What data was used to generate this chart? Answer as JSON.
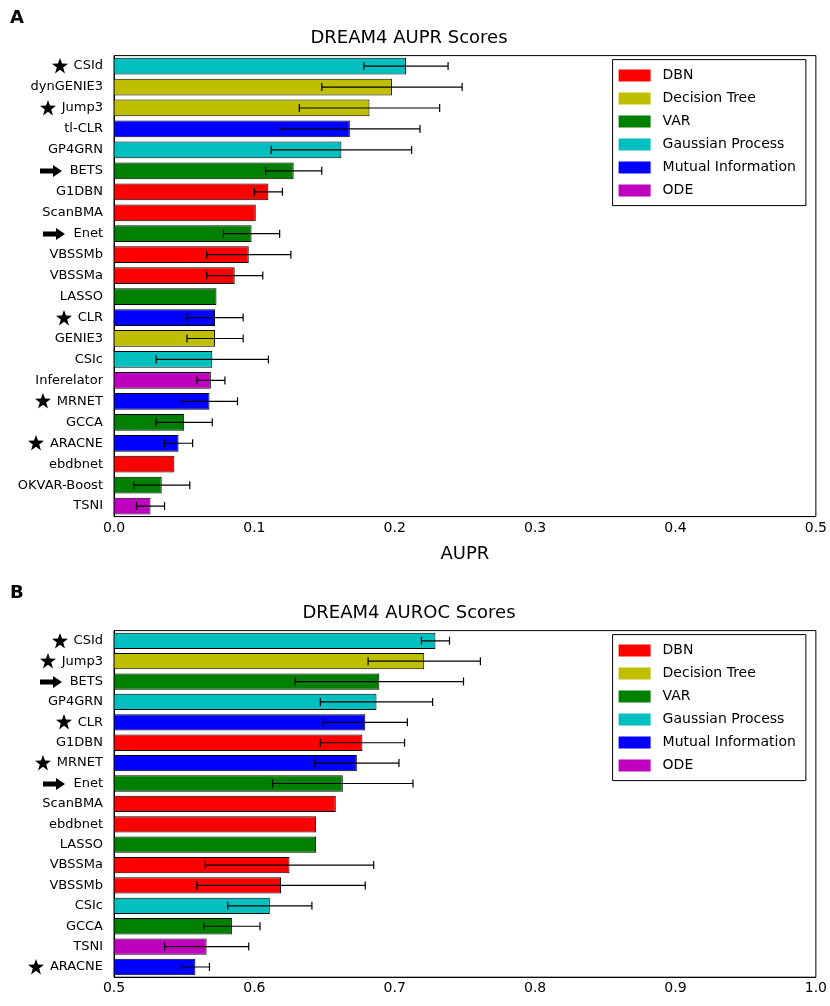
{
  "chart_data": [
    {
      "type": "bar",
      "orientation": "horizontal",
      "title": "DREAM4 AUPR Scores",
      "xlabel": "AUPR",
      "annotations": [
        "A"
      ],
      "categories": [
        "CSId",
        "dynGENIE3",
        "Jump3",
        "tl-CLR",
        "GP4GRN",
        "BETS",
        "G1DBN",
        "ScanBMA",
        "Enet",
        "VBSSMb",
        "VBSSMa",
        "LASSO",
        "CLR",
        "GENIE3",
        "CSIc",
        "Inferelator",
        "MRNET",
        "GCCA",
        "ARACNE",
        "ebdbnet",
        "OKVAR-Boost",
        "TSNI"
      ],
      "series": [
        {
          "name": "DBN",
          "color": "#ff0000",
          "values": [
            null,
            null,
            null,
            null,
            null,
            null,
            0.11,
            0.101,
            null,
            0.096,
            0.086,
            null,
            null,
            null,
            null,
            null,
            null,
            null,
            null,
            0.043,
            null,
            null
          ],
          "errors": [
            null,
            null,
            null,
            null,
            null,
            null,
            0.01,
            null,
            null,
            0.03,
            0.02,
            null,
            null,
            null,
            null,
            null,
            null,
            null,
            null,
            null,
            null,
            null
          ]
        },
        {
          "name": "Decision Tree",
          "color": "#bfbf00",
          "values": [
            null,
            0.198,
            0.182,
            null,
            null,
            null,
            null,
            null,
            null,
            null,
            null,
            null,
            null,
            0.072,
            null,
            null,
            null,
            null,
            null,
            null,
            null,
            null
          ],
          "errors": [
            null,
            0.05,
            0.05,
            null,
            null,
            null,
            null,
            null,
            null,
            null,
            null,
            null,
            null,
            0.02,
            null,
            null,
            null,
            null,
            null,
            null,
            null,
            null
          ]
        },
        {
          "name": "VAR",
          "color": "#008000",
          "values": [
            null,
            null,
            null,
            null,
            null,
            0.128,
            null,
            null,
            0.098,
            null,
            null,
            0.073,
            null,
            null,
            null,
            null,
            null,
            0.05,
            null,
            null,
            0.034,
            null
          ],
          "errors": [
            null,
            null,
            null,
            null,
            null,
            0.02,
            null,
            null,
            0.02,
            null,
            null,
            null,
            null,
            null,
            null,
            null,
            null,
            0.02,
            null,
            null,
            0.02,
            null
          ]
        },
        {
          "name": "Gaussian Process",
          "color": "#00bfbf",
          "values": [
            0.208,
            null,
            null,
            null,
            0.162,
            null,
            null,
            null,
            null,
            null,
            null,
            null,
            null,
            null,
            0.07,
            null,
            null,
            null,
            null,
            null,
            null,
            null
          ],
          "errors": [
            0.03,
            null,
            null,
            null,
            0.05,
            null,
            null,
            null,
            null,
            null,
            null,
            null,
            null,
            null,
            0.04,
            null,
            null,
            null,
            null,
            null,
            null,
            null
          ]
        },
        {
          "name": "Mutual Information",
          "color": "#0000ff",
          "values": [
            null,
            null,
            null,
            0.168,
            null,
            null,
            null,
            null,
            null,
            null,
            null,
            null,
            0.072,
            null,
            null,
            null,
            0.068,
            null,
            0.046,
            null,
            null,
            null
          ],
          "errors": [
            null,
            null,
            null,
            0.05,
            null,
            null,
            null,
            null,
            null,
            null,
            null,
            null,
            0.02,
            null,
            null,
            null,
            0.02,
            null,
            0.01,
            null,
            null,
            null
          ]
        },
        {
          "name": "ODE",
          "color": "#bf00bf",
          "values": [
            null,
            null,
            null,
            null,
            null,
            null,
            null,
            null,
            null,
            null,
            null,
            null,
            null,
            null,
            null,
            0.069,
            null,
            null,
            null,
            null,
            null,
            0.026
          ],
          "errors": [
            null,
            null,
            null,
            null,
            null,
            null,
            null,
            null,
            null,
            null,
            null,
            null,
            null,
            null,
            null,
            0.01,
            null,
            null,
            null,
            null,
            null,
            0.01
          ]
        }
      ],
      "xlim": [
        0,
        0.5
      ],
      "xticks": [
        {
          "value": 0,
          "label": "0.0"
        },
        0.1,
        0.2,
        0.3,
        0.4,
        0.5
      ],
      "legend": "top right"
    },
    {
      "type": "bar",
      "orientation": "horizontal",
      "title": "DREAM4 AUROC Scores",
      "annotations": [
        "B"
      ],
      "categories": [
        "CSId",
        "Jump3",
        "BETS",
        "GP4GRN",
        "CLR",
        "G1DBN",
        "MRNET",
        "Enet",
        "ScanBMA",
        "ebdbnet",
        "LASSO",
        "VBSSMa",
        "VBSSMb",
        "CSIc",
        "GCCA",
        "TSNI",
        "ARACNE"
      ],
      "series": [
        {
          "name": "DBN",
          "color": "#ff0000",
          "values": [
            null,
            null,
            null,
            null,
            null,
            0.677,
            null,
            null,
            0.658,
            0.644,
            null,
            0.625,
            0.619,
            null,
            null,
            null,
            null
          ],
          "errors": [
            null,
            null,
            null,
            null,
            null,
            0.03,
            null,
            null,
            null,
            null,
            null,
            0.06,
            0.06,
            null,
            null,
            null,
            null
          ]
        },
        {
          "name": "Decision Tree",
          "color": "#bfbf00",
          "values": [
            null,
            0.721,
            null,
            null,
            null,
            null,
            null,
            null,
            null,
            null,
            null,
            null,
            null,
            null,
            null,
            null,
            null
          ],
          "errors": [
            null,
            0.04,
            null,
            null,
            null,
            null,
            null,
            null,
            null,
            null,
            null,
            null,
            null,
            null,
            null,
            null,
            null
          ]
        },
        {
          "name": "VAR",
          "color": "#008000",
          "values": [
            null,
            null,
            0.689,
            null,
            null,
            null,
            null,
            0.663,
            null,
            null,
            0.644,
            null,
            null,
            null,
            0.584,
            null,
            null
          ],
          "errors": [
            null,
            null,
            0.06,
            null,
            null,
            null,
            null,
            0.05,
            null,
            null,
            null,
            null,
            null,
            null,
            0.02,
            null,
            null
          ]
        },
        {
          "name": "Gaussian Process",
          "color": "#00bfbf",
          "values": [
            0.729,
            null,
            null,
            0.687,
            null,
            null,
            null,
            null,
            null,
            null,
            null,
            null,
            null,
            0.611,
            null,
            null,
            null
          ],
          "errors": [
            0.01,
            null,
            null,
            0.04,
            null,
            null,
            null,
            null,
            null,
            null,
            null,
            null,
            null,
            0.03,
            null,
            null,
            null
          ]
        },
        {
          "name": "Mutual Information",
          "color": "#0000ff",
          "values": [
            null,
            null,
            null,
            null,
            0.679,
            null,
            0.673,
            null,
            null,
            null,
            null,
            null,
            null,
            null,
            null,
            null,
            0.558
          ],
          "errors": [
            null,
            null,
            null,
            null,
            0.03,
            null,
            0.03,
            null,
            null,
            null,
            null,
            null,
            null,
            null,
            null,
            null,
            0.01
          ]
        },
        {
          "name": "ODE",
          "color": "#bf00bf",
          "values": [
            null,
            null,
            null,
            null,
            null,
            null,
            null,
            null,
            null,
            null,
            null,
            null,
            null,
            null,
            null,
            0.566,
            null
          ],
          "errors": [
            null,
            null,
            null,
            null,
            null,
            null,
            null,
            null,
            null,
            null,
            null,
            null,
            null,
            null,
            null,
            0.03,
            null
          ]
        }
      ],
      "xlim": [
        0.5,
        1.0
      ],
      "xticks": [
        0.5,
        0.6,
        0.7,
        0.8,
        0.9,
        {
          "value": 1.0,
          "label": "1.0"
        }
      ],
      "legend": "top right"
    }
  ]
}
